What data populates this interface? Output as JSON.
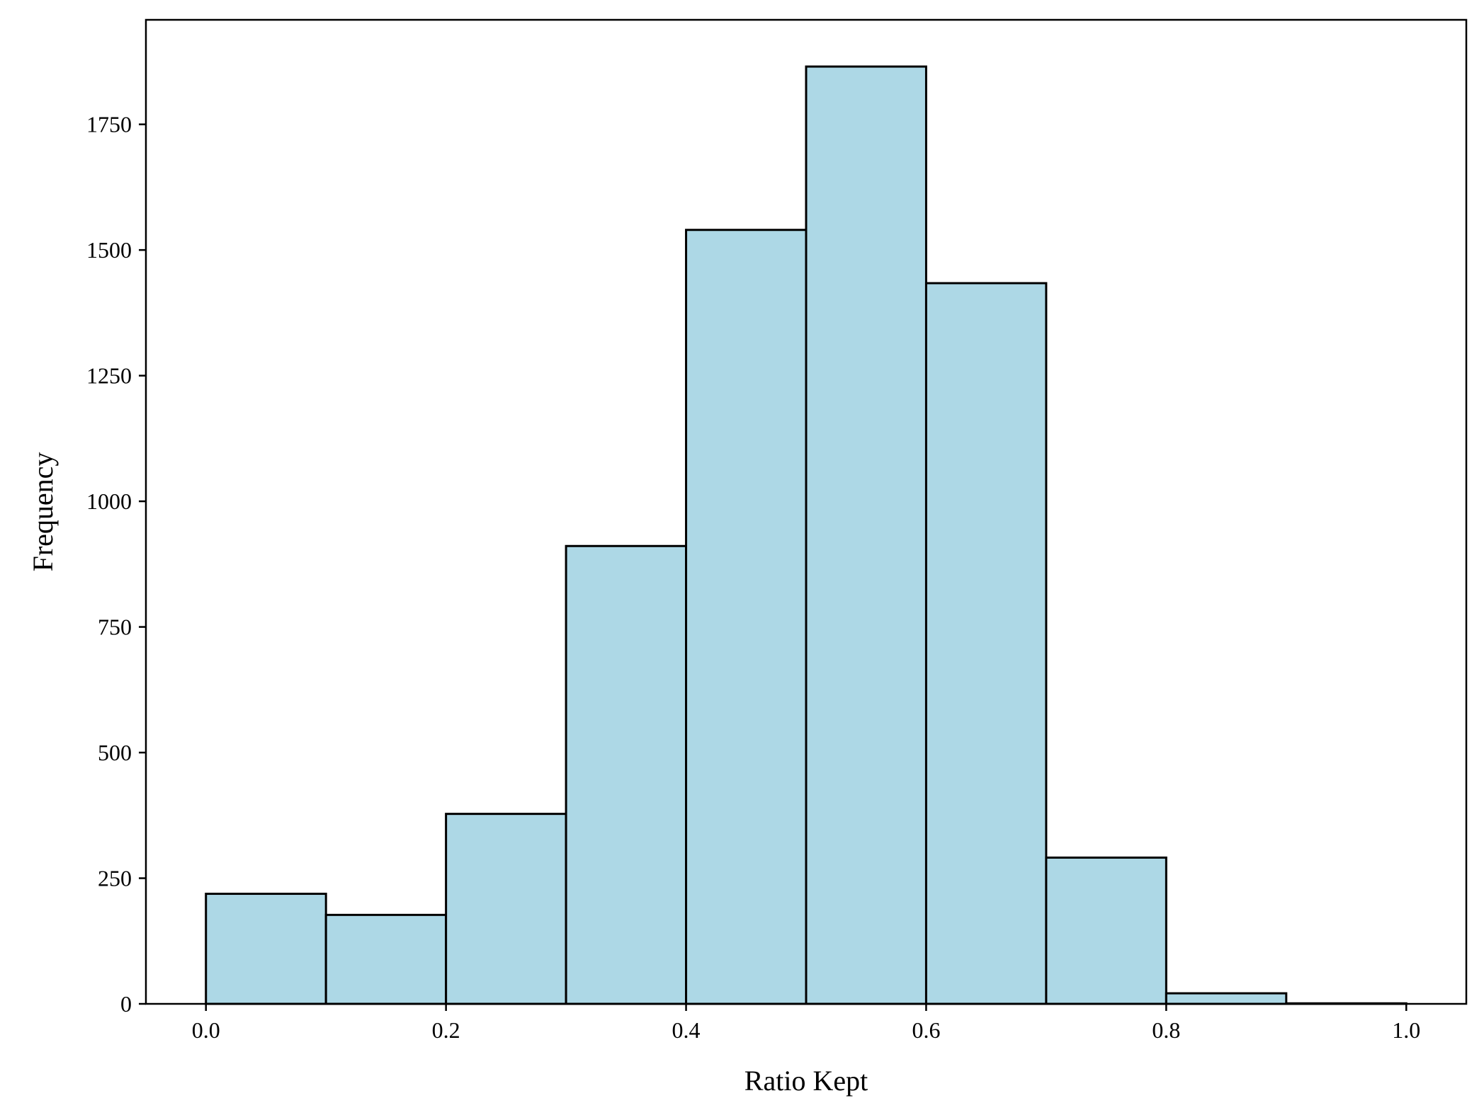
{
  "chart_data": {
    "type": "bar",
    "title": "",
    "xlabel": "Ratio Kept",
    "ylabel": "Frequency",
    "bin_edges": [
      0.0,
      0.1,
      0.2,
      0.3,
      0.4,
      0.5,
      0.6,
      0.7,
      0.8,
      0.9,
      1.0
    ],
    "values": [
      219,
      177,
      378,
      911,
      1540,
      1865,
      1434,
      291,
      21,
      1
    ],
    "xlim": [
      -0.05,
      1.05
    ],
    "ylim": [
      0,
      1958
    ],
    "xticks": [
      0.0,
      0.2,
      0.4,
      0.6,
      0.8,
      1.0
    ],
    "xtick_labels": [
      "0.0",
      "0.2",
      "0.4",
      "0.6",
      "0.8",
      "1.0"
    ],
    "yticks": [
      0,
      250,
      500,
      750,
      1000,
      1250,
      1500,
      1750
    ],
    "ytick_labels": [
      "0",
      "250",
      "500",
      "750",
      "1000",
      "1250",
      "1500",
      "1750"
    ],
    "grid": false,
    "legend": "none",
    "colors": {
      "bar_fill": "#add8e6",
      "bar_edge": "#000000",
      "axes": "#000000"
    }
  }
}
